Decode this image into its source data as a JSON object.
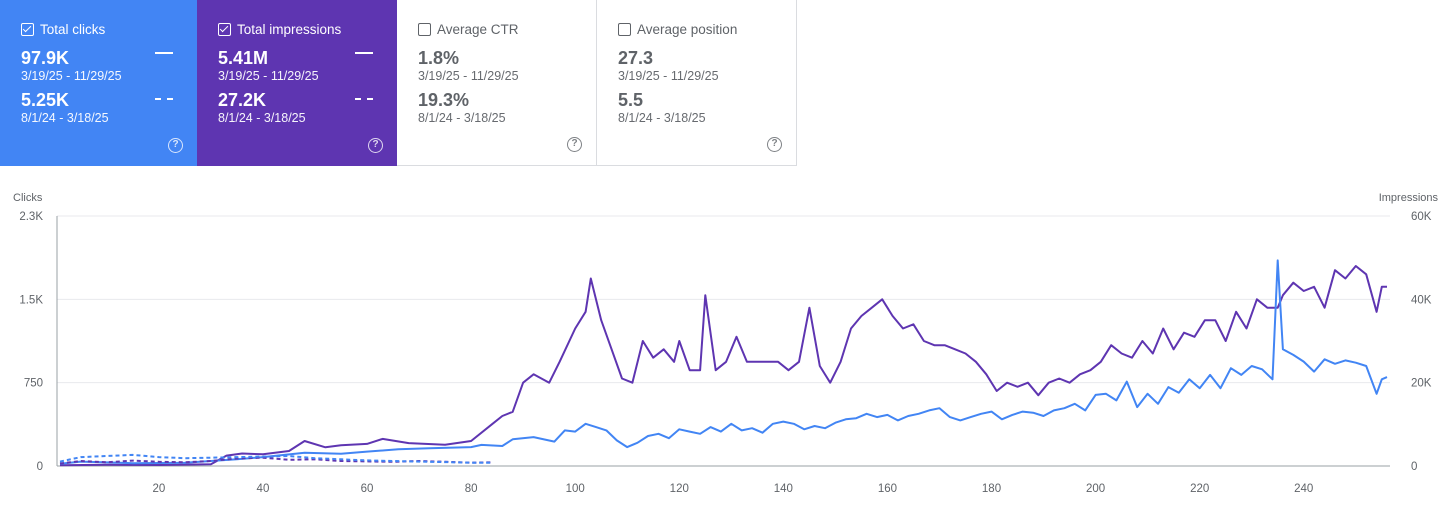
{
  "cards": [
    {
      "title": "Total clicks",
      "checked": true,
      "current": {
        "value": "97.9K",
        "range": "3/19/25 - 11/29/25"
      },
      "previous": {
        "value": "5.25K",
        "range": "8/1/24 - 3/18/25"
      },
      "color": "#4285f4"
    },
    {
      "title": "Total impressions",
      "checked": true,
      "current": {
        "value": "5.41M",
        "range": "3/19/25 - 11/29/25"
      },
      "previous": {
        "value": "27.2K",
        "range": "8/1/24 - 3/18/25"
      },
      "color": "#5e35b1"
    },
    {
      "title": "Average CTR",
      "checked": false,
      "current": {
        "value": "1.8%",
        "range": "3/19/25 - 11/29/25"
      },
      "previous": {
        "value": "19.3%",
        "range": "8/1/24 - 3/18/25"
      }
    },
    {
      "title": "Average position",
      "checked": false,
      "current": {
        "value": "27.3",
        "range": "3/19/25 - 11/29/25"
      },
      "previous": {
        "value": "5.5",
        "range": "8/1/24 - 3/18/25"
      }
    }
  ],
  "help_glyph": "?",
  "chart_data": {
    "type": "line",
    "ylabel_left": "Clicks",
    "ylabel_right": "Impressions",
    "left_ticks": [
      "0",
      "750",
      "1.5K",
      "2.3K"
    ],
    "left_tick_values": [
      0,
      750,
      1500,
      2250
    ],
    "right_ticks": [
      "0",
      "20K",
      "40K",
      "60K"
    ],
    "right_tick_values": [
      0,
      20000,
      40000,
      60000
    ],
    "x_ticks": [
      "20",
      "40",
      "60",
      "80",
      "100",
      "120",
      "140",
      "160",
      "180",
      "200",
      "220",
      "240"
    ],
    "x_tick_values": [
      20,
      40,
      60,
      80,
      100,
      120,
      140,
      160,
      180,
      200,
      220,
      240
    ],
    "xlim": [
      1,
      256
    ],
    "ylim_left": [
      0,
      2250
    ],
    "ylim_right": [
      0,
      60000
    ],
    "grid": true,
    "series": [
      {
        "name": "Total impressions",
        "axis": "right",
        "color": "#5e35b1",
        "dashed": false,
        "points": [
          [
            1,
            200
          ],
          [
            10,
            300
          ],
          [
            20,
            250
          ],
          [
            30,
            400
          ],
          [
            33,
            2500
          ],
          [
            36,
            3000
          ],
          [
            40,
            2800
          ],
          [
            45,
            3600
          ],
          [
            48,
            6000
          ],
          [
            52,
            4500
          ],
          [
            55,
            5000
          ],
          [
            60,
            5300
          ],
          [
            63,
            6500
          ],
          [
            68,
            5500
          ],
          [
            75,
            5100
          ],
          [
            80,
            6000
          ],
          [
            84,
            10000
          ],
          [
            86,
            12000
          ],
          [
            88,
            13000
          ],
          [
            90,
            20000
          ],
          [
            92,
            22000
          ],
          [
            95,
            20000
          ],
          [
            97,
            25000
          ],
          [
            100,
            33000
          ],
          [
            102,
            37000
          ],
          [
            103,
            45000
          ],
          [
            105,
            35000
          ],
          [
            107,
            28000
          ],
          [
            109,
            21000
          ],
          [
            111,
            20000
          ],
          [
            113,
            30000
          ],
          [
            115,
            26000
          ],
          [
            117,
            28000
          ],
          [
            119,
            25000
          ],
          [
            120,
            30000
          ],
          [
            122,
            23000
          ],
          [
            124,
            23000
          ],
          [
            125,
            41000
          ],
          [
            127,
            23000
          ],
          [
            129,
            25000
          ],
          [
            131,
            31000
          ],
          [
            133,
            25000
          ],
          [
            135,
            25000
          ],
          [
            137,
            25000
          ],
          [
            139,
            25000
          ],
          [
            141,
            23000
          ],
          [
            143,
            25000
          ],
          [
            145,
            38000
          ],
          [
            147,
            24000
          ],
          [
            149,
            20000
          ],
          [
            151,
            25000
          ],
          [
            153,
            33000
          ],
          [
            155,
            36000
          ],
          [
            157,
            38000
          ],
          [
            159,
            40000
          ],
          [
            161,
            36000
          ],
          [
            163,
            33000
          ],
          [
            165,
            34000
          ],
          [
            167,
            30000
          ],
          [
            169,
            29000
          ],
          [
            171,
            29000
          ],
          [
            173,
            28000
          ],
          [
            175,
            27000
          ],
          [
            177,
            25000
          ],
          [
            179,
            22000
          ],
          [
            181,
            18000
          ],
          [
            183,
            20000
          ],
          [
            185,
            19000
          ],
          [
            187,
            20000
          ],
          [
            189,
            17000
          ],
          [
            191,
            20000
          ],
          [
            193,
            21000
          ],
          [
            195,
            20000
          ],
          [
            197,
            22000
          ],
          [
            199,
            23000
          ],
          [
            201,
            25000
          ],
          [
            203,
            29000
          ],
          [
            205,
            27000
          ],
          [
            207,
            26000
          ],
          [
            209,
            30000
          ],
          [
            211,
            27000
          ],
          [
            213,
            33000
          ],
          [
            215,
            28000
          ],
          [
            217,
            32000
          ],
          [
            219,
            31000
          ],
          [
            221,
            35000
          ],
          [
            223,
            35000
          ],
          [
            225,
            30000
          ],
          [
            227,
            37000
          ],
          [
            229,
            33000
          ],
          [
            231,
            40000
          ],
          [
            233,
            38000
          ],
          [
            235,
            38000
          ],
          [
            236,
            41000
          ],
          [
            238,
            44000
          ],
          [
            240,
            42000
          ],
          [
            242,
            43000
          ],
          [
            244,
            38000
          ],
          [
            246,
            47000
          ],
          [
            248,
            45000
          ],
          [
            250,
            48000
          ],
          [
            252,
            46000
          ],
          [
            254,
            37000
          ],
          [
            255,
            43000
          ],
          [
            256,
            43000
          ]
        ]
      },
      {
        "name": "Total clicks",
        "axis": "left",
        "color": "#4285f4",
        "dashed": false,
        "points": [
          [
            1,
            20
          ],
          [
            5,
            40
          ],
          [
            15,
            25
          ],
          [
            25,
            30
          ],
          [
            35,
            60
          ],
          [
            40,
            80
          ],
          [
            48,
            120
          ],
          [
            55,
            110
          ],
          [
            60,
            130
          ],
          [
            66,
            150
          ],
          [
            72,
            160
          ],
          [
            80,
            170
          ],
          [
            82,
            190
          ],
          [
            86,
            180
          ],
          [
            88,
            240
          ],
          [
            92,
            260
          ],
          [
            96,
            220
          ],
          [
            98,
            320
          ],
          [
            100,
            310
          ],
          [
            102,
            380
          ],
          [
            104,
            350
          ],
          [
            106,
            320
          ],
          [
            108,
            230
          ],
          [
            110,
            170
          ],
          [
            112,
            210
          ],
          [
            114,
            270
          ],
          [
            116,
            290
          ],
          [
            118,
            250
          ],
          [
            120,
            330
          ],
          [
            122,
            310
          ],
          [
            124,
            290
          ],
          [
            126,
            350
          ],
          [
            128,
            310
          ],
          [
            130,
            380
          ],
          [
            132,
            320
          ],
          [
            134,
            340
          ],
          [
            136,
            300
          ],
          [
            138,
            380
          ],
          [
            140,
            400
          ],
          [
            142,
            380
          ],
          [
            144,
            330
          ],
          [
            146,
            360
          ],
          [
            148,
            340
          ],
          [
            150,
            390
          ],
          [
            152,
            420
          ],
          [
            154,
            430
          ],
          [
            156,
            470
          ],
          [
            158,
            440
          ],
          [
            160,
            460
          ],
          [
            162,
            410
          ],
          [
            164,
            450
          ],
          [
            166,
            470
          ],
          [
            168,
            500
          ],
          [
            170,
            520
          ],
          [
            172,
            440
          ],
          [
            174,
            410
          ],
          [
            176,
            440
          ],
          [
            178,
            470
          ],
          [
            180,
            490
          ],
          [
            182,
            420
          ],
          [
            184,
            460
          ],
          [
            186,
            490
          ],
          [
            188,
            480
          ],
          [
            190,
            450
          ],
          [
            192,
            500
          ],
          [
            194,
            520
          ],
          [
            196,
            560
          ],
          [
            198,
            500
          ],
          [
            200,
            640
          ],
          [
            202,
            650
          ],
          [
            204,
            590
          ],
          [
            206,
            760
          ],
          [
            208,
            530
          ],
          [
            210,
            650
          ],
          [
            212,
            560
          ],
          [
            214,
            710
          ],
          [
            216,
            660
          ],
          [
            218,
            780
          ],
          [
            220,
            700
          ],
          [
            222,
            820
          ],
          [
            224,
            700
          ],
          [
            226,
            880
          ],
          [
            228,
            820
          ],
          [
            230,
            900
          ],
          [
            232,
            870
          ],
          [
            234,
            780
          ],
          [
            235,
            1850
          ],
          [
            236,
            1050
          ],
          [
            238,
            1000
          ],
          [
            240,
            940
          ],
          [
            242,
            850
          ],
          [
            244,
            960
          ],
          [
            246,
            920
          ],
          [
            248,
            950
          ],
          [
            250,
            930
          ],
          [
            252,
            900
          ],
          [
            254,
            650
          ],
          [
            255,
            780
          ],
          [
            256,
            800
          ]
        ]
      },
      {
        "name": "Total impressions (previous)",
        "axis": "right",
        "color": "#5e35b1",
        "dashed": true,
        "points": [
          [
            1,
            600
          ],
          [
            5,
            1200
          ],
          [
            10,
            900
          ],
          [
            15,
            1300
          ],
          [
            20,
            1000
          ],
          [
            25,
            900
          ],
          [
            30,
            1200
          ],
          [
            35,
            1800
          ],
          [
            40,
            2000
          ],
          [
            45,
            1500
          ],
          [
            50,
            1600
          ],
          [
            55,
            1200
          ],
          [
            60,
            1100
          ],
          [
            65,
            1000
          ],
          [
            70,
            1200
          ],
          [
            75,
            1000
          ],
          [
            80,
            800
          ],
          [
            84,
            900
          ]
        ]
      },
      {
        "name": "Total clicks (previous)",
        "axis": "left",
        "color": "#4285f4",
        "dashed": true,
        "points": [
          [
            1,
            40
          ],
          [
            5,
            80
          ],
          [
            10,
            90
          ],
          [
            15,
            100
          ],
          [
            20,
            80
          ],
          [
            25,
            70
          ],
          [
            30,
            75
          ],
          [
            35,
            80
          ],
          [
            40,
            85
          ],
          [
            45,
            90
          ],
          [
            50,
            70
          ],
          [
            55,
            60
          ],
          [
            60,
            50
          ],
          [
            65,
            45
          ],
          [
            70,
            40
          ],
          [
            75,
            35
          ],
          [
            80,
            30
          ],
          [
            84,
            30
          ]
        ]
      }
    ]
  }
}
